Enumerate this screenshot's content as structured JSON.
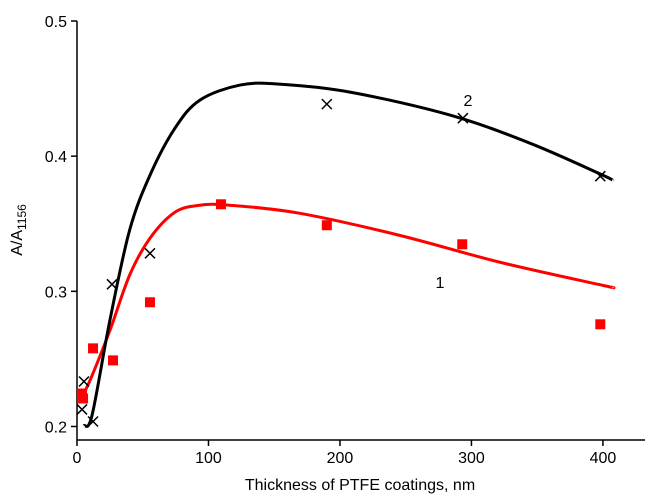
{
  "chart_data": {
    "type": "scatter",
    "xlabel": "Thickness of PTFE coatings, nm",
    "ylabel": "A/A",
    "ylabel_sub": "1156",
    "xlim": [
      0,
      432
    ],
    "ylim": [
      0.19,
      0.5
    ],
    "xticks": [
      0,
      100,
      200,
      300,
      400
    ],
    "yticks": [
      0.2,
      0.3,
      0.4,
      0.5
    ],
    "series": [
      {
        "name": "1",
        "color": "#ff0000",
        "marker": "square",
        "x": [
          3.8,
          4.6,
          12.2,
          27.4,
          55.5,
          109.5,
          190,
          293,
          398
        ],
        "values": [
          0.2244,
          0.2207,
          0.2578,
          0.2489,
          0.2919,
          0.3644,
          0.3489,
          0.3348,
          0.2756
        ],
        "fit_x": [
          2.3,
          9.9,
          25,
          40,
          55.5,
          74.5,
          93.5,
          116,
          169,
          245,
          321.7,
          400,
          407
        ],
        "fit_y": [
          0.2193,
          0.2341,
          0.271,
          0.3119,
          0.3393,
          0.3585,
          0.3637,
          0.3637,
          0.3578,
          0.3415,
          0.3215,
          0.3044,
          0.303
        ]
      },
      {
        "name": "2",
        "color": "#000000",
        "marker": "cross",
        "x": [
          3.8,
          5.3,
          12.2,
          26.6,
          55.5,
          190,
          293.5,
          398
        ],
        "values": [
          0.2126,
          0.2333,
          0.2037,
          0.3052,
          0.3281,
          0.4385,
          0.4281,
          0.3852
        ],
        "fit_x": [
          5.3,
          11.4,
          25,
          40,
          55.5,
          74.5,
          93.5,
          124,
          154,
          207.6,
          283.7,
          344.5,
          400,
          407
        ],
        "fit_y": [
          0.2007,
          0.2081,
          0.2785,
          0.3452,
          0.3859,
          0.4207,
          0.4415,
          0.4526,
          0.4533,
          0.4474,
          0.4304,
          0.4096,
          0.3859,
          0.3822
        ]
      }
    ]
  }
}
